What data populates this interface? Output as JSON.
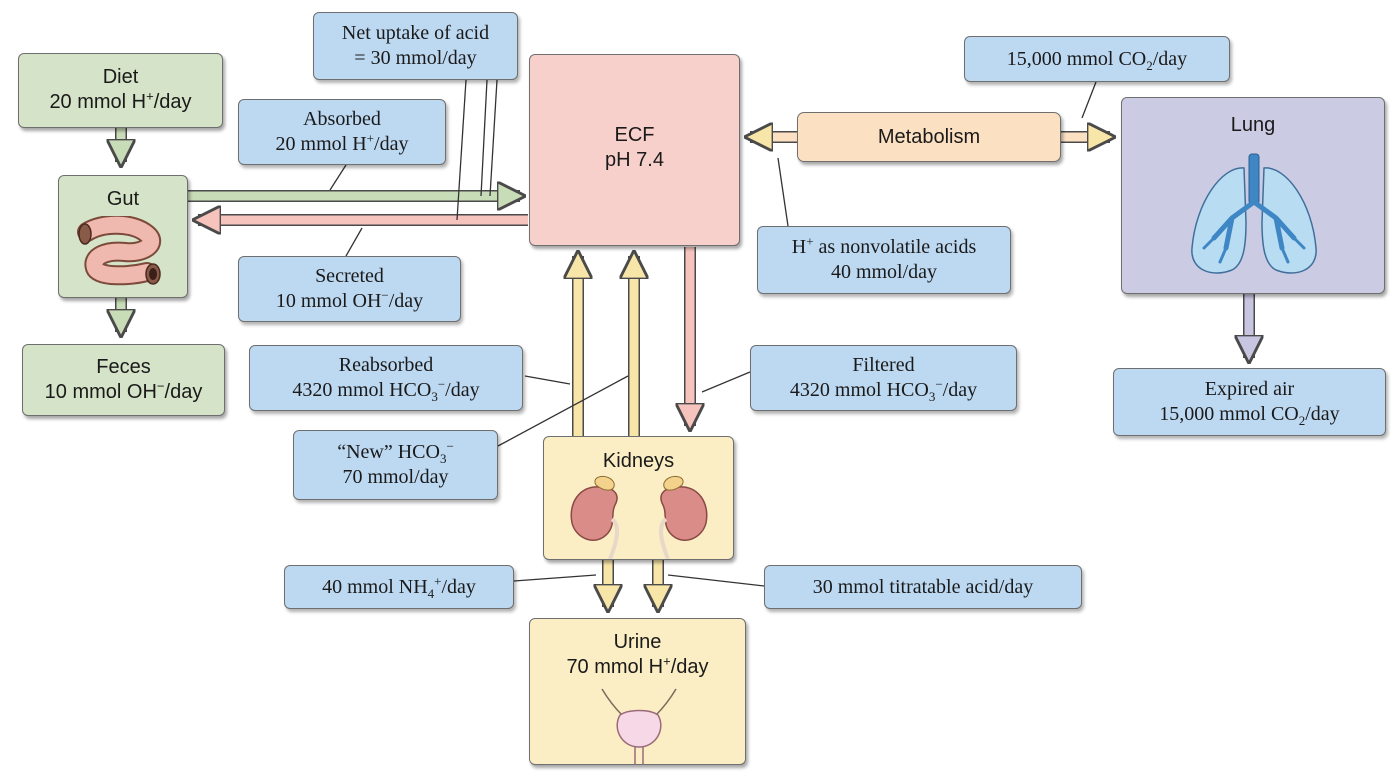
{
  "compartments": {
    "diet": {
      "line1": "Diet",
      "line2_pre": "20 mmol H",
      "line2_sup": "+",
      "line2_post": "/day"
    },
    "gut": {
      "label": "Gut"
    },
    "feces": {
      "line1": "Feces",
      "line2_pre": "10 mmol OH",
      "line2_sup": "−",
      "line2_post": "/day"
    },
    "ecf": {
      "line1": "ECF",
      "line2": "pH 7.4"
    },
    "metabolism": {
      "label": "Metabolism"
    },
    "lung": {
      "label": "Lung"
    },
    "kidneys": {
      "label": "Kidneys"
    },
    "urine": {
      "line1": "Urine",
      "line2_pre": "70 mmol H",
      "line2_sup": "+",
      "line2_post": "/day"
    }
  },
  "annotations": {
    "net_uptake": {
      "line1": "Net uptake of acid",
      "line2": "= 30 mmol/day"
    },
    "absorbed": {
      "line1": "Absorbed",
      "line2_pre": "20 mmol H",
      "line2_sup": "+",
      "line2_post": "/day"
    },
    "secreted": {
      "line1": "Secreted",
      "line2_pre": "10 mmol OH",
      "line2_sup": "−",
      "line2_post": "/day"
    },
    "co2_production": {
      "pre": "15,000 mmol CO",
      "sub": "2",
      "post": "/day"
    },
    "nonvolatile": {
      "line1_pre": "H",
      "line1_sup": "+",
      "line1_post": " as nonvolatile acids",
      "line2": "40 mmol/day"
    },
    "expired_air": {
      "line1": "Expired air",
      "line2_pre": "15,000 mmol CO",
      "line2_sub": "2",
      "line2_post": "/day"
    },
    "reabsorbed": {
      "line1": "Reabsorbed",
      "line2_pre": "4320 mmol HCO",
      "line2_sup": "−",
      "line2_sub": "3",
      "line2_post": "/day"
    },
    "filtered": {
      "line1": "Filtered",
      "line2_pre": "4320 mmol HCO",
      "line2_sup": "−",
      "line2_sub": "3",
      "line2_post": "/day"
    },
    "new_bicarb": {
      "line1_pre": "“New” HCO",
      "line1_sup": "−",
      "line1_sub": "3",
      "line2": "70 mmol/day"
    },
    "ammonium": {
      "pre": "40 mmol NH",
      "sup": "+",
      "sub": "4",
      "post": "/day"
    },
    "titratable": {
      "text": "30 mmol titratable acid/day"
    }
  },
  "colors": {
    "green_box": "#d5e3c8",
    "ecf_box": "#f8d0cb",
    "kidney_box": "#fbeec4",
    "metabolism_box": "#fce0c2",
    "lung_box": "#cccbe4",
    "note_box": "#bdd8f1",
    "arrow_green": "#c9dcb8",
    "arrow_pink": "#f6c3bd",
    "arrow_cream": "#f8e6a8",
    "arrow_lavender": "#c8c5e0"
  },
  "icons": [
    "intestine-icon",
    "lungs-icon",
    "kidney-icon",
    "bladder-icon"
  ]
}
